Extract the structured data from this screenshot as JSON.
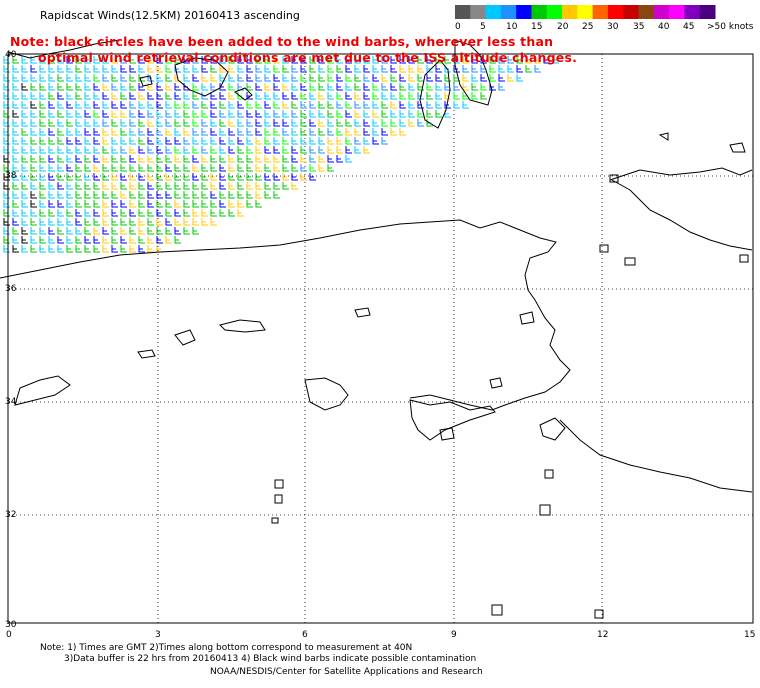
{
  "title": "Rapidscat Winds(12.5KM) 20160413 ascending",
  "note_lines": [
    "Note: black circles have been added to the wind barbs, wherever less than",
    "optimal wind retrieval conditions are met due to the ISS altitude changes."
  ],
  "colorbar": {
    "colors": [
      "#555555",
      "#888888",
      "#00c8ff",
      "#1e90ff",
      "#0000ff",
      "#00c800",
      "#00ff00",
      "#ffc800",
      "#ffff00",
      "#ff6400",
      "#ff0000",
      "#c80000",
      "#8b4513",
      "#d000d0",
      "#ff00ff",
      "#8000c0",
      "#4b0082"
    ],
    "labels": [
      "0",
      "5",
      "10",
      "15",
      "20",
      "25",
      "30",
      "35",
      "40",
      "45",
      ">50 knots"
    ]
  },
  "lat_labels": [
    "40",
    "38",
    "36",
    "34",
    "32",
    "30"
  ],
  "lon_labels": [
    "0",
    "3",
    "6",
    "9",
    "12",
    "15"
  ],
  "footer": {
    "line1": "Note: 1) Times are GMT 2)Times along bottom correspond to measurement at 40N",
    "line2": "3)Data buffer is 22 hrs from 20160413 4) Black wind barbs indicate possible contamination",
    "line3": "NOAA/NESDIS/Center for Satellite Applications and Research"
  }
}
